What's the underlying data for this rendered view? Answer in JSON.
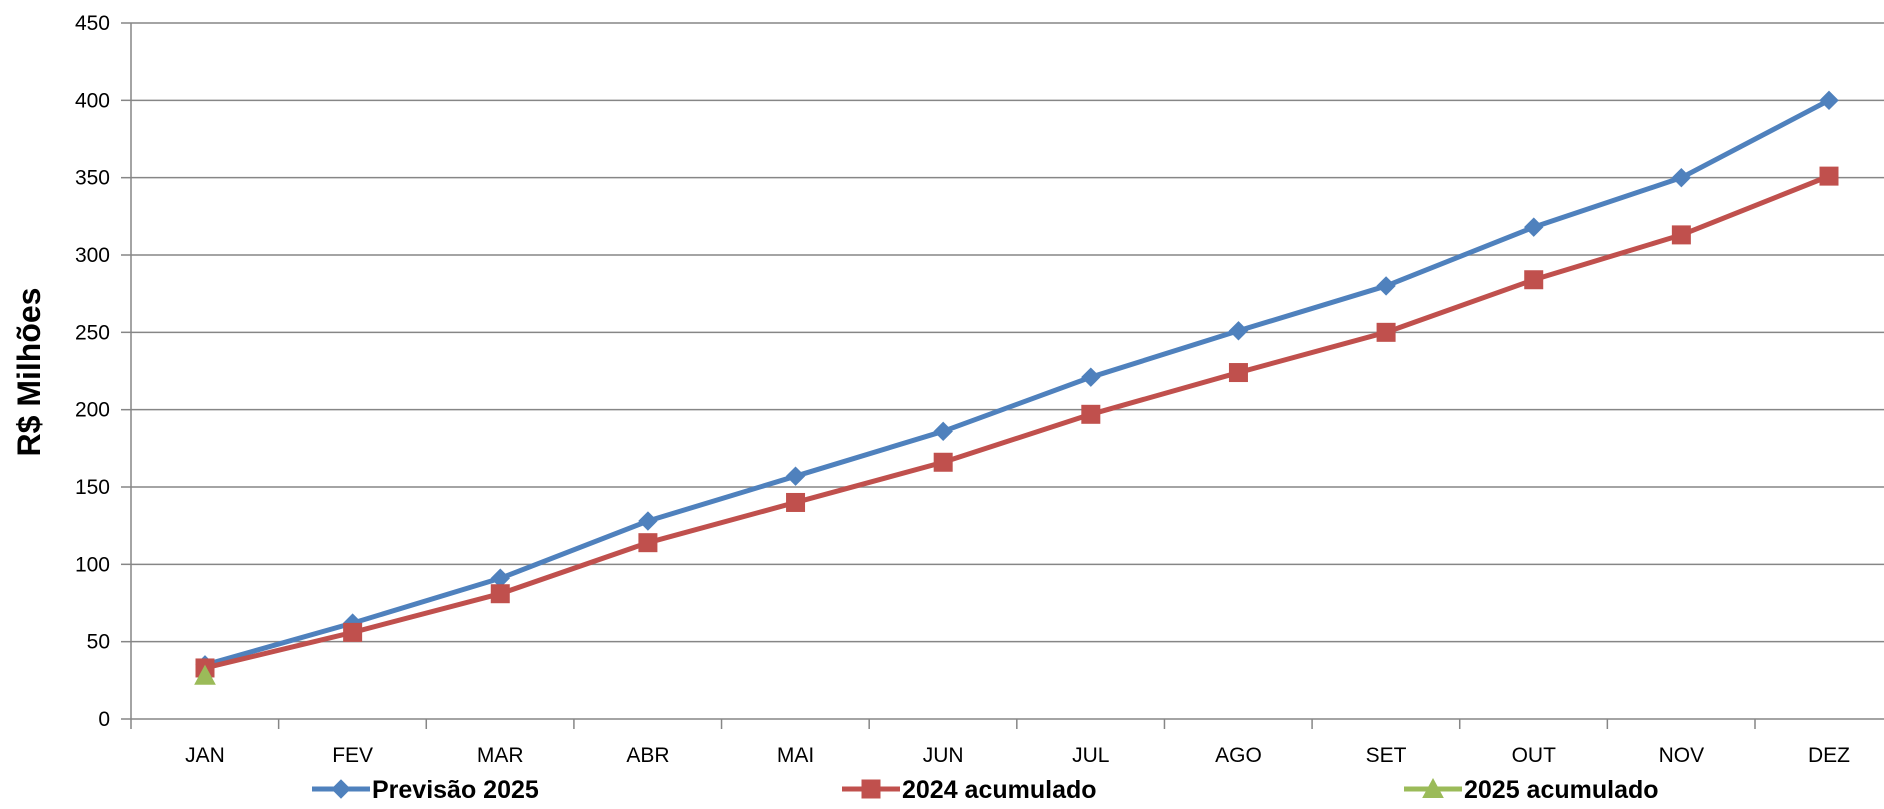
{
  "chart_data": {
    "type": "line",
    "title": "",
    "xlabel": "",
    "ylabel": "R$ Milhões",
    "categories": [
      "JAN",
      "FEV",
      "MAR",
      "ABR",
      "MAI",
      "JUN",
      "JUL",
      "AGO",
      "SET",
      "OUT",
      "NOV",
      "DEZ"
    ],
    "ylim": [
      0,
      450
    ],
    "yticks": [
      0,
      50,
      100,
      150,
      200,
      250,
      300,
      350,
      400,
      450
    ],
    "grid": true,
    "legend_position": "bottom",
    "series": [
      {
        "name": "Previsão 2025",
        "color": "#4F81BD",
        "marker": "diamond",
        "values": [
          35,
          62,
          91,
          128,
          157,
          186,
          221,
          251,
          280,
          318,
          350,
          400
        ]
      },
      {
        "name": "2024 acumulado",
        "color": "#C0504D",
        "marker": "square",
        "values": [
          33,
          56,
          81,
          114,
          140,
          166,
          197,
          224,
          250,
          284,
          313,
          351
        ]
      },
      {
        "name": "2025 acumulado",
        "color": "#9BBB59",
        "marker": "triangle",
        "values": [
          28,
          null,
          null,
          null,
          null,
          null,
          null,
          null,
          null,
          null,
          null,
          null
        ]
      }
    ]
  }
}
